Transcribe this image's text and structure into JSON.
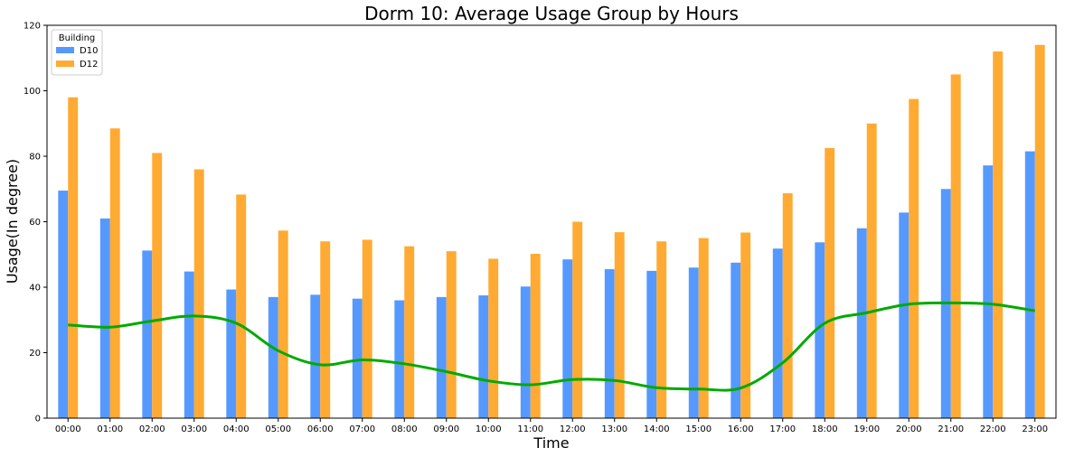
{
  "chart_data": {
    "type": "bar",
    "title": "Dorm 10: Average Usage Group by Hours",
    "xlabel": "Time",
    "ylabel": "Usage(In degree)",
    "ylim": [
      0,
      120
    ],
    "yticks": [
      "0",
      "20",
      "40",
      "60",
      "80",
      "100",
      "120"
    ],
    "categories": [
      "00:00",
      "01:00",
      "02:00",
      "03:00",
      "04:00",
      "05:00",
      "06:00",
      "07:00",
      "08:00",
      "09:00",
      "10:00",
      "11:00",
      "12:00",
      "13:00",
      "14:00",
      "15:00",
      "16:00",
      "17:00",
      "18:00",
      "19:00",
      "20:00",
      "21:00",
      "22:00",
      "23:00"
    ],
    "legend": {
      "title": "Building",
      "position": "top-left"
    },
    "series": [
      {
        "name": "D10",
        "type": "bar",
        "color": "#5599ff",
        "values": [
          69.5,
          61,
          51.2,
          44.8,
          39.3,
          37,
          37.7,
          36.5,
          36,
          37,
          37.5,
          40.2,
          48.5,
          45.5,
          45,
          46,
          47.5,
          51.8,
          53.7,
          58,
          62.8,
          70,
          77.2,
          81.5
        ]
      },
      {
        "name": "D12",
        "type": "bar",
        "color": "#ffaa33",
        "values": [
          98,
          88.5,
          81,
          76,
          68.3,
          57.3,
          54,
          54.5,
          52.5,
          51,
          48.7,
          50.2,
          60,
          56.8,
          54,
          55,
          56.7,
          68.7,
          82.5,
          90,
          97.5,
          105,
          112,
          114
        ]
      },
      {
        "type": "line",
        "color": "#00aa00",
        "values": [
          28.5,
          27.8,
          29.7,
          31.2,
          29,
          20.6,
          16.3,
          17.8,
          16.6,
          14.2,
          11.4,
          10.2,
          11.8,
          11.5,
          9.3,
          8.9,
          9.2,
          16.9,
          29,
          32.2,
          34.8,
          35.2,
          34.8,
          32.8
        ]
      }
    ]
  }
}
